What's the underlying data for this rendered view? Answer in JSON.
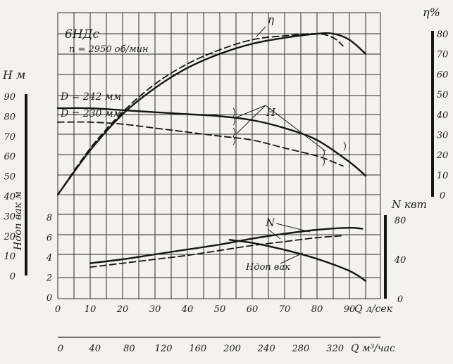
{
  "chart_data": {
    "type": "line",
    "title": "6НДс",
    "subtitle": "n = 2950 об/мин",
    "x_axis": {
      "label": "Q л/сек",
      "range": [
        0,
        100
      ],
      "ticks": [
        "0",
        "10",
        "20",
        "30",
        "40",
        "50",
        "60",
        "70",
        "80",
        "90"
      ]
    },
    "x2_axis": {
      "label": "Q м³/час",
      "ticks": [
        "0",
        "40",
        "80",
        "120",
        "160",
        "200",
        "240",
        "280",
        "320"
      ]
    },
    "y_head": {
      "label": "H м",
      "range": [
        0,
        90
      ],
      "ticks": [
        "90",
        "80",
        "70",
        "60",
        "50",
        "40",
        "30",
        "20",
        "10",
        "0"
      ]
    },
    "y_vac": {
      "label": "Hдоп вак м",
      "range": [
        0,
        8
      ],
      "ticks": [
        "8",
        "6",
        "4",
        "2",
        "0"
      ]
    },
    "y_power": {
      "label": "N квт",
      "range": [
        0,
        80
      ],
      "ticks": [
        "80",
        "40",
        "0"
      ]
    },
    "y_eff": {
      "label": "η%",
      "range": [
        0,
        80
      ],
      "ticks": [
        "80",
        "70",
        "60",
        "50",
        "40",
        "30",
        "20",
        "10",
        "0"
      ]
    },
    "annotations": {
      "eta": "η",
      "h": "H",
      "n": "N",
      "hvak": "Hдоп вак",
      "d242": "D = 242 мм",
      "d230": "D = 230 мм"
    },
    "series": [
      {
        "name": "η",
        "axis": "eff",
        "style": "solid",
        "x": [
          0,
          10,
          20,
          30,
          40,
          50,
          60,
          70,
          80,
          85,
          90,
          95
        ],
        "y": [
          0,
          22,
          40,
          53,
          63,
          70,
          75,
          78,
          80,
          80,
          77,
          70
        ]
      },
      {
        "name": "η",
        "axis": "eff",
        "style": "dashed",
        "x": [
          0,
          10,
          20,
          30,
          40,
          50,
          60,
          70,
          80,
          85,
          88
        ],
        "y": [
          0,
          23,
          41,
          55,
          65,
          72,
          77,
          79,
          80,
          78,
          74
        ]
      },
      {
        "name": "H",
        "axis": "head",
        "style": "solid",
        "x": [
          0,
          10,
          20,
          30,
          40,
          50,
          60,
          70,
          80,
          90,
          95
        ],
        "y": [
          84,
          84,
          83,
          82,
          81,
          80,
          78,
          74,
          68,
          57,
          50
        ]
      },
      {
        "name": "H",
        "axis": "head",
        "style": "dashed",
        "x": [
          0,
          10,
          20,
          30,
          40,
          50,
          60,
          70,
          80,
          85,
          88
        ],
        "y": [
          77,
          77,
          76,
          74,
          72,
          70,
          68,
          64,
          60,
          57,
          55
        ]
      },
      {
        "name": "N",
        "axis": "power",
        "style": "solid",
        "x": [
          10,
          20,
          30,
          40,
          50,
          60,
          70,
          80,
          90,
          94
        ],
        "y": [
          36,
          40,
          45,
          50,
          55,
          61,
          66,
          70,
          72,
          71
        ]
      },
      {
        "name": "N",
        "axis": "power",
        "style": "dashed",
        "x": [
          10,
          20,
          30,
          40,
          50,
          60,
          70,
          80,
          88
        ],
        "y": [
          32,
          36,
          40,
          44,
          49,
          54,
          58,
          62,
          64
        ]
      },
      {
        "name": "Hдоп вак",
        "axis": "vac",
        "style": "solid",
        "x": [
          53,
          60,
          70,
          80,
          90,
          95
        ],
        "y": [
          5.8,
          5.5,
          4.8,
          3.9,
          2.7,
          1.7
        ]
      }
    ]
  }
}
